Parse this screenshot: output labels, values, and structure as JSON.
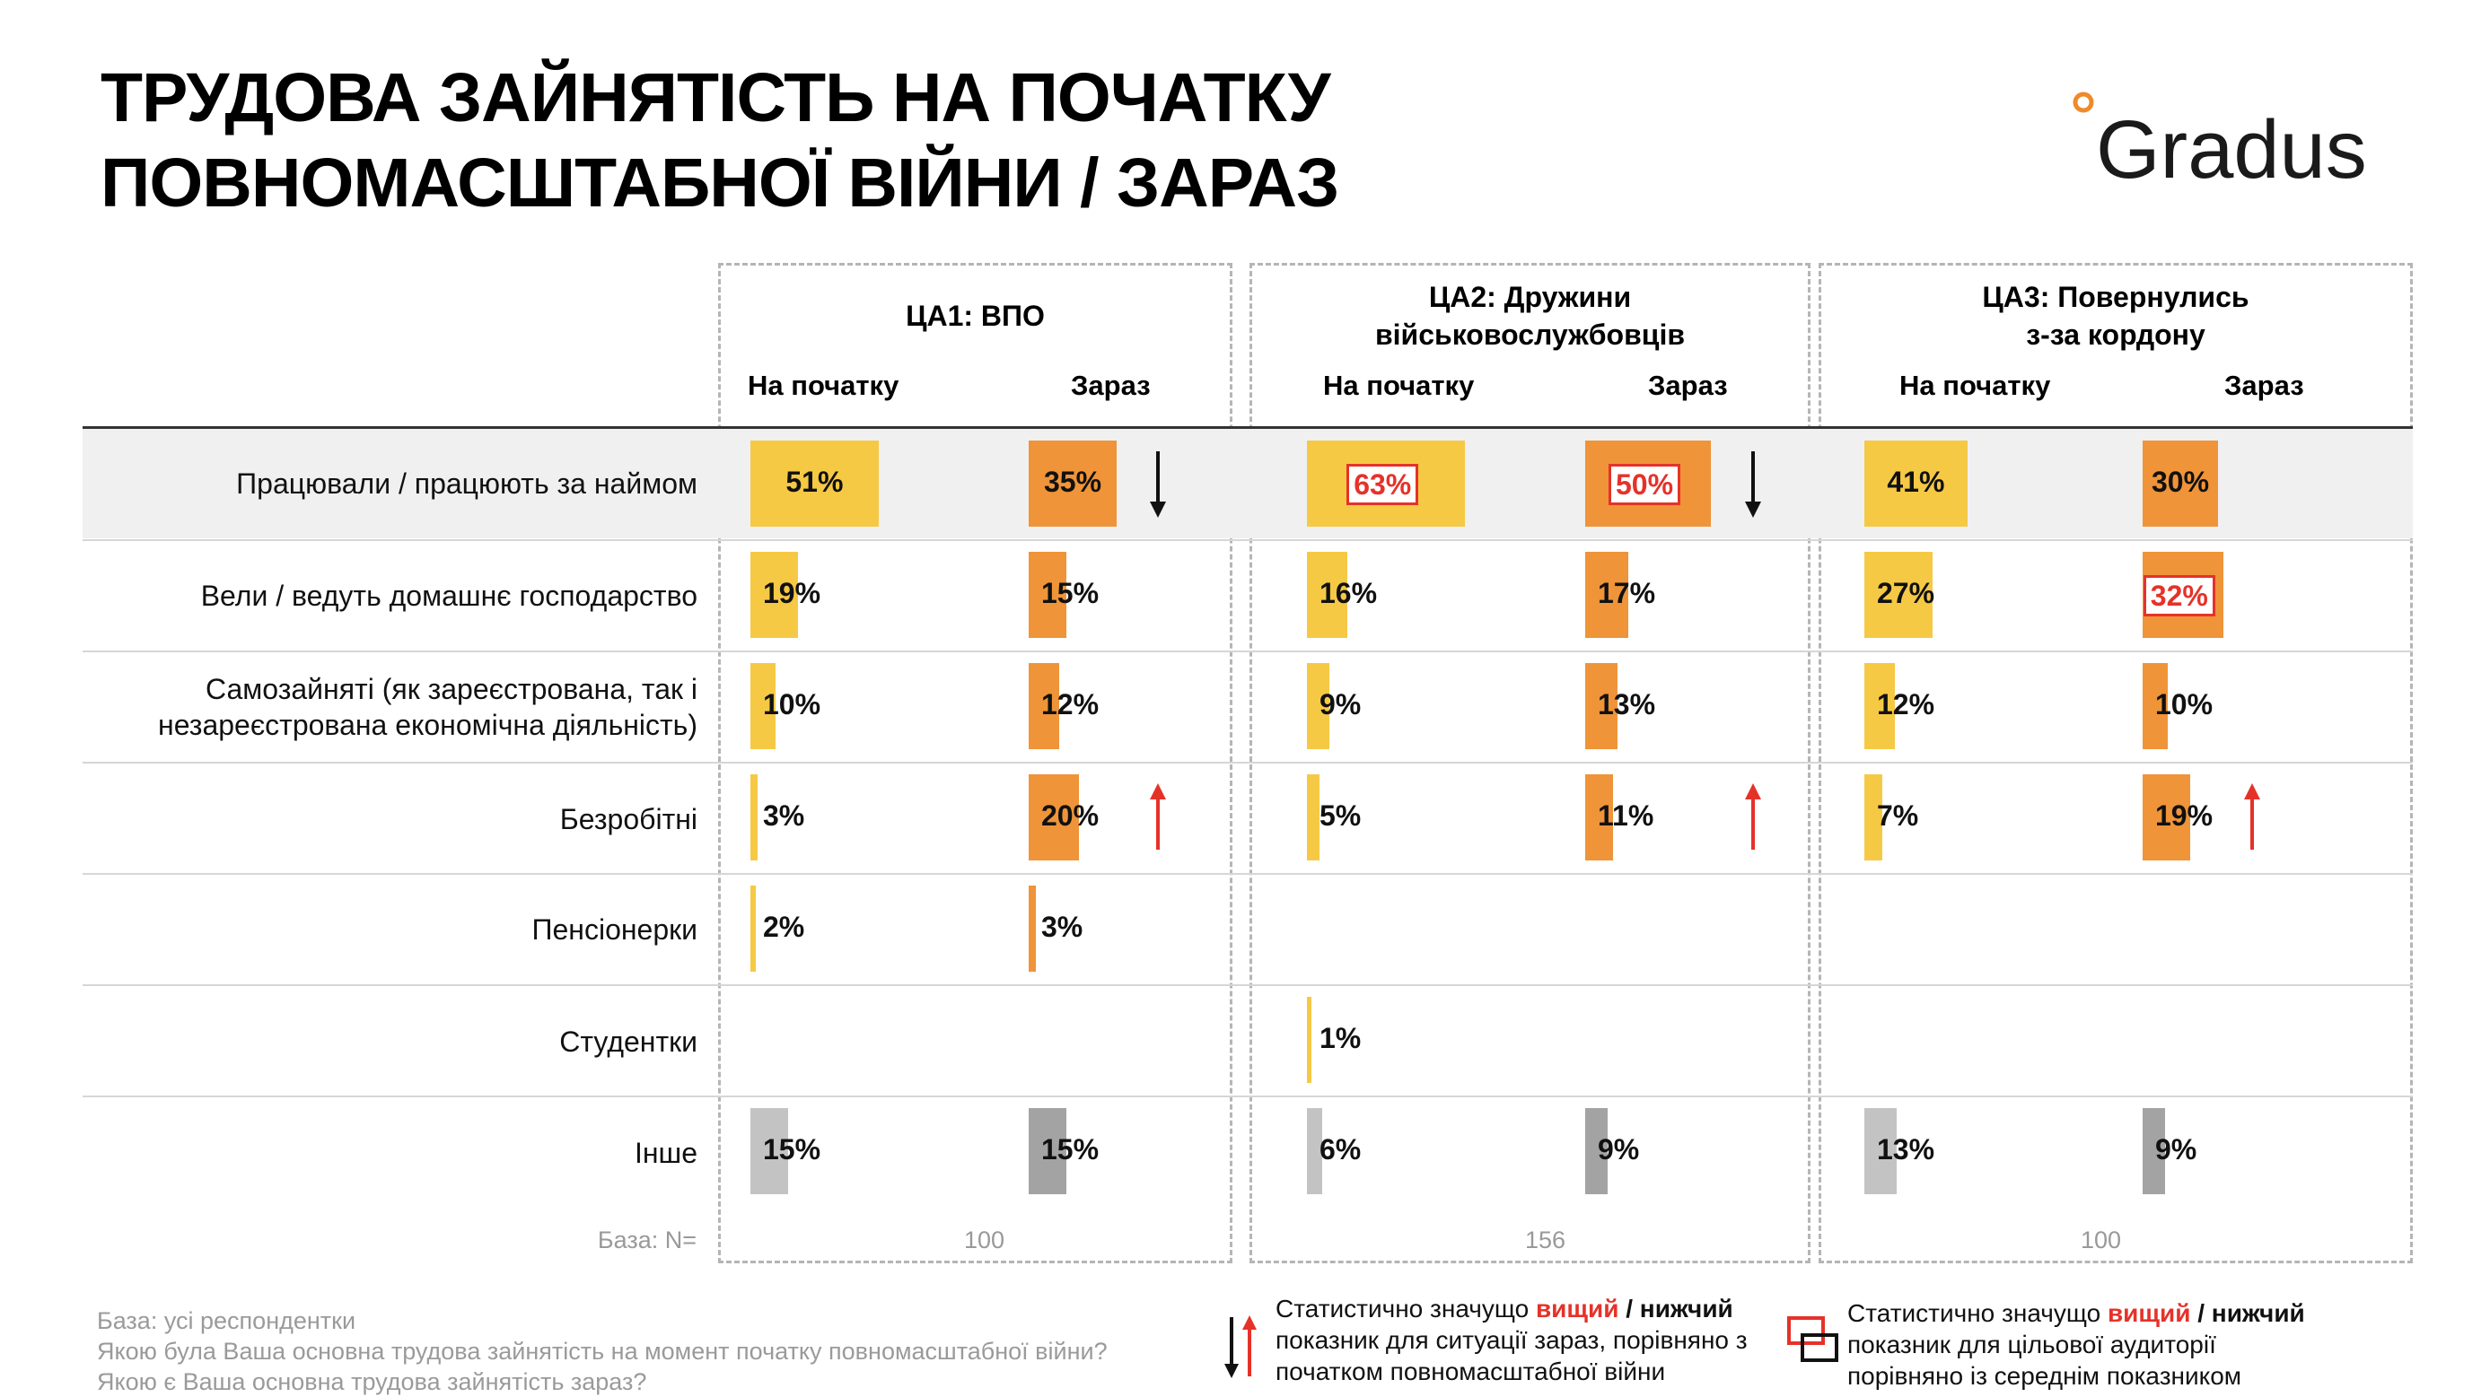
{
  "title": "ТРУДОВА ЗАЙНЯТІСТЬ НА ПОЧАТКУ\nПОВНОМАСШТАБНОЇ ВІЙНИ / ЗАРАЗ",
  "logo": "Gradus",
  "colors": {
    "yellow": "#f6c945",
    "orange": "#ef9438",
    "gray_light": "#c3c3c3",
    "gray_dark": "#a3a3a3",
    "red": "#e53229"
  },
  "groups": [
    {
      "title": "ЦА1: ВПО",
      "col1": "На початку",
      "col2": "Зараз",
      "base": "100"
    },
    {
      "title": "ЦА2: Дружини\nвійськовослужбовців",
      "col1": "На початку",
      "col2": "Зараз",
      "base": "156"
    },
    {
      "title": "ЦА3: Повернулись\nз-за кордону",
      "col1": "На початку",
      "col2": "Зараз",
      "base": "100"
    }
  ],
  "base_label": "База: N=",
  "chart_data": {
    "type": "bar",
    "categories": [
      "Працювали / працюють за наймом",
      "Вели / ведуть домашнє господарство",
      "Самозайняті (як зареєстрована, так і\nнезареєстрована економічна діяльність)",
      "Безробітні",
      "Пенсіонерки",
      "Студентки",
      "Інше"
    ],
    "series": [
      {
        "name": "ЦА1: ВПО — На початку",
        "values": [
          51,
          19,
          10,
          3,
          2,
          null,
          15
        ]
      },
      {
        "name": "ЦА1: ВПО — Зараз",
        "values": [
          35,
          15,
          12,
          20,
          3,
          null,
          15
        ]
      },
      {
        "name": "ЦА2: Дружини військовослужбовців — На початку",
        "values": [
          63,
          16,
          9,
          5,
          null,
          1,
          6
        ]
      },
      {
        "name": "ЦА2: Дружини військовослужбовців — Зараз",
        "values": [
          50,
          17,
          13,
          11,
          null,
          null,
          9
        ]
      },
      {
        "name": "ЦА3: Повернулись з-за кордону — На початку",
        "values": [
          41,
          27,
          12,
          7,
          null,
          null,
          13
        ]
      },
      {
        "name": "ЦА3: Повернулись з-за кордону — Зараз",
        "values": [
          30,
          32,
          10,
          19,
          null,
          null,
          9
        ]
      }
    ],
    "unit": "%",
    "significance_vs_start": [
      {
        "series": 1,
        "row": 0,
        "direction": "down"
      },
      {
        "series": 1,
        "row": 3,
        "direction": "up"
      },
      {
        "series": 3,
        "row": 0,
        "direction": "down"
      },
      {
        "series": 3,
        "row": 3,
        "direction": "up"
      },
      {
        "series": 5,
        "row": 3,
        "direction": "up"
      }
    ],
    "significance_vs_average": [
      {
        "series": 2,
        "row": 0,
        "direction": "higher"
      },
      {
        "series": 3,
        "row": 0,
        "direction": "higher"
      },
      {
        "series": 5,
        "row": 1,
        "direction": "higher"
      }
    ]
  },
  "footnote": {
    "line1": "База: усі респондентки",
    "line2": "Якою була Ваша основна трудова зайнятість на момент початку повномасштабної війни?",
    "line3": "Якою є Ваша основна трудова зайнятість зараз?"
  },
  "legend1": {
    "pre": "Статистично значущо ",
    "higher": "вищий",
    "slash": " / ",
    "lower": "нижчий",
    "rest": "показник для ситуації зараз, порівняно з початком повномасштабної війни"
  },
  "legend2": {
    "pre": "Статистично значущо ",
    "higher": "вищий",
    "slash": " / ",
    "lower": "нижчий",
    "rest": "показник для цільової аудиторії порівняно із середнім показником"
  }
}
